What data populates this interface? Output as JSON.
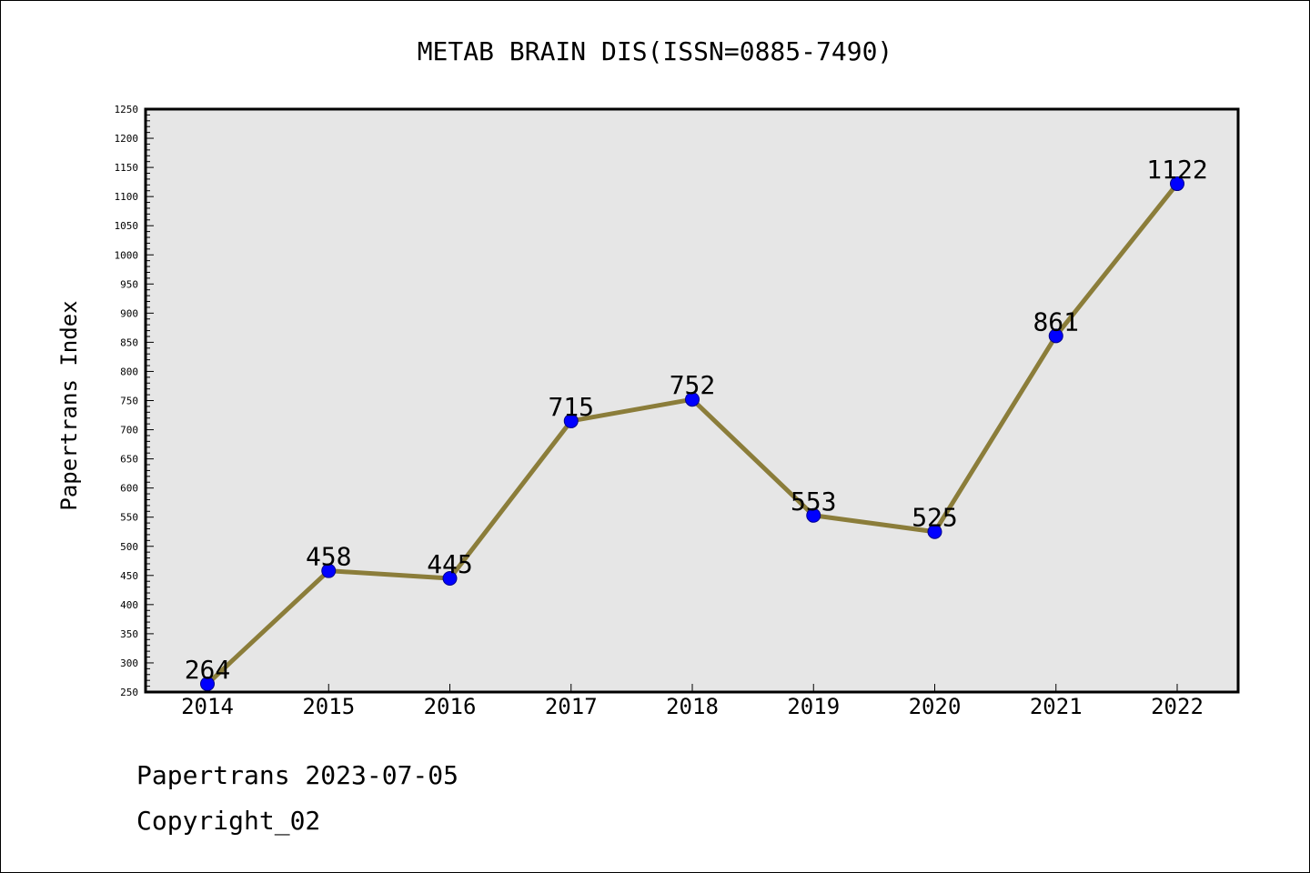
{
  "chart_data": {
    "type": "line",
    "title": "METAB BRAIN DIS(ISSN=0885-7490)",
    "xlabel": "",
    "ylabel": "Papertrans Index",
    "categories": [
      "2014",
      "2015",
      "2016",
      "2017",
      "2018",
      "2019",
      "2020",
      "2021",
      "2022"
    ],
    "values": [
      264,
      458,
      445,
      715,
      752,
      553,
      525,
      861,
      1122
    ],
    "data_labels": [
      "264",
      "458",
      "445",
      "715",
      "752",
      "553",
      "525",
      "861",
      "1122"
    ],
    "ylim": [
      250,
      1250
    ],
    "y_ticks": [
      "250",
      "300",
      "350",
      "400",
      "450",
      "500",
      "550",
      "600",
      "650",
      "700",
      "750",
      "800",
      "850",
      "900",
      "950",
      "1000",
      "1050",
      "1100",
      "1150",
      "1200",
      "1250"
    ],
    "y_minor_step": 10,
    "grid": false,
    "legend": "none",
    "colors": {
      "line": "#8b7d3a",
      "marker": "#0000ff",
      "marker_edge": "#00008b",
      "plot_background": "#e6e6e6"
    }
  },
  "footer": {
    "date_line": "Papertrans 2023-07-05",
    "copyright_line": "Copyright_02"
  }
}
